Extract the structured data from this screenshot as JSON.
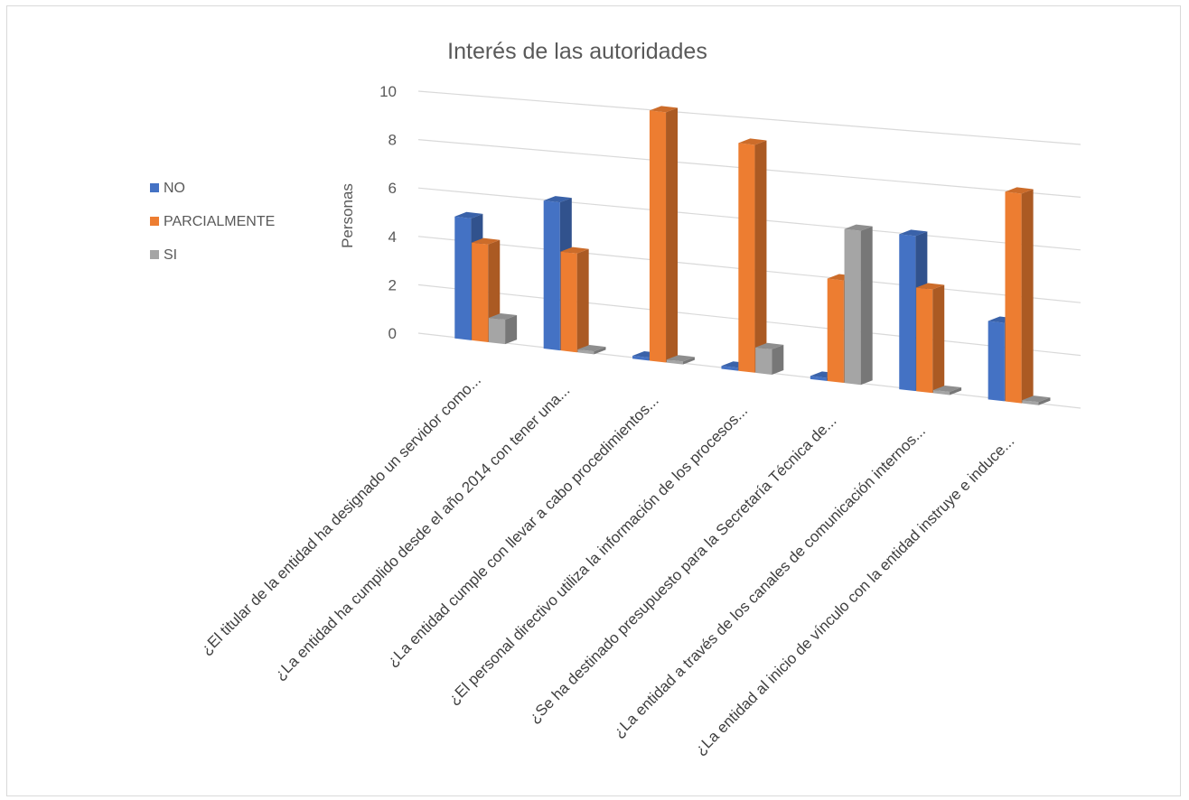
{
  "chart_data": {
    "type": "bar",
    "title": "Interés de las autoridades",
    "xlabel": "",
    "ylabel": "Personas",
    "ylim": [
      0,
      10
    ],
    "yticks": [
      "0",
      "2",
      "4",
      "6",
      "8",
      "10"
    ],
    "grid": true,
    "legend_position": "left",
    "categories": [
      "¿El titular de la entidad ha designado un servidor como...",
      "¿La entidad ha cumplido desde el año 2014 con tener una...",
      "¿La entidad cumple con llevar a cabo procedimientos...",
      "¿El personal directivo utiliza la información de los procesos...",
      "¿Se ha destinado presupuesto para la Secretaría Técnica de...",
      "¿La entidad a través de los canales de comunicación internos...",
      "¿La entidad al inicio de vínculo con la entidad instruye e induce..."
    ],
    "series": [
      {
        "name": "NO",
        "color": "#4472C4",
        "values": [
          5,
          6,
          0,
          0,
          0,
          6,
          3
        ]
      },
      {
        "name": "PARCIALMENTE",
        "color": "#ED7D31",
        "values": [
          4,
          4,
          10,
          9,
          4,
          4,
          8
        ]
      },
      {
        "name": "SI",
        "color": "#A5A5A5",
        "values": [
          1,
          0,
          0,
          1,
          6,
          0,
          0
        ]
      }
    ]
  }
}
